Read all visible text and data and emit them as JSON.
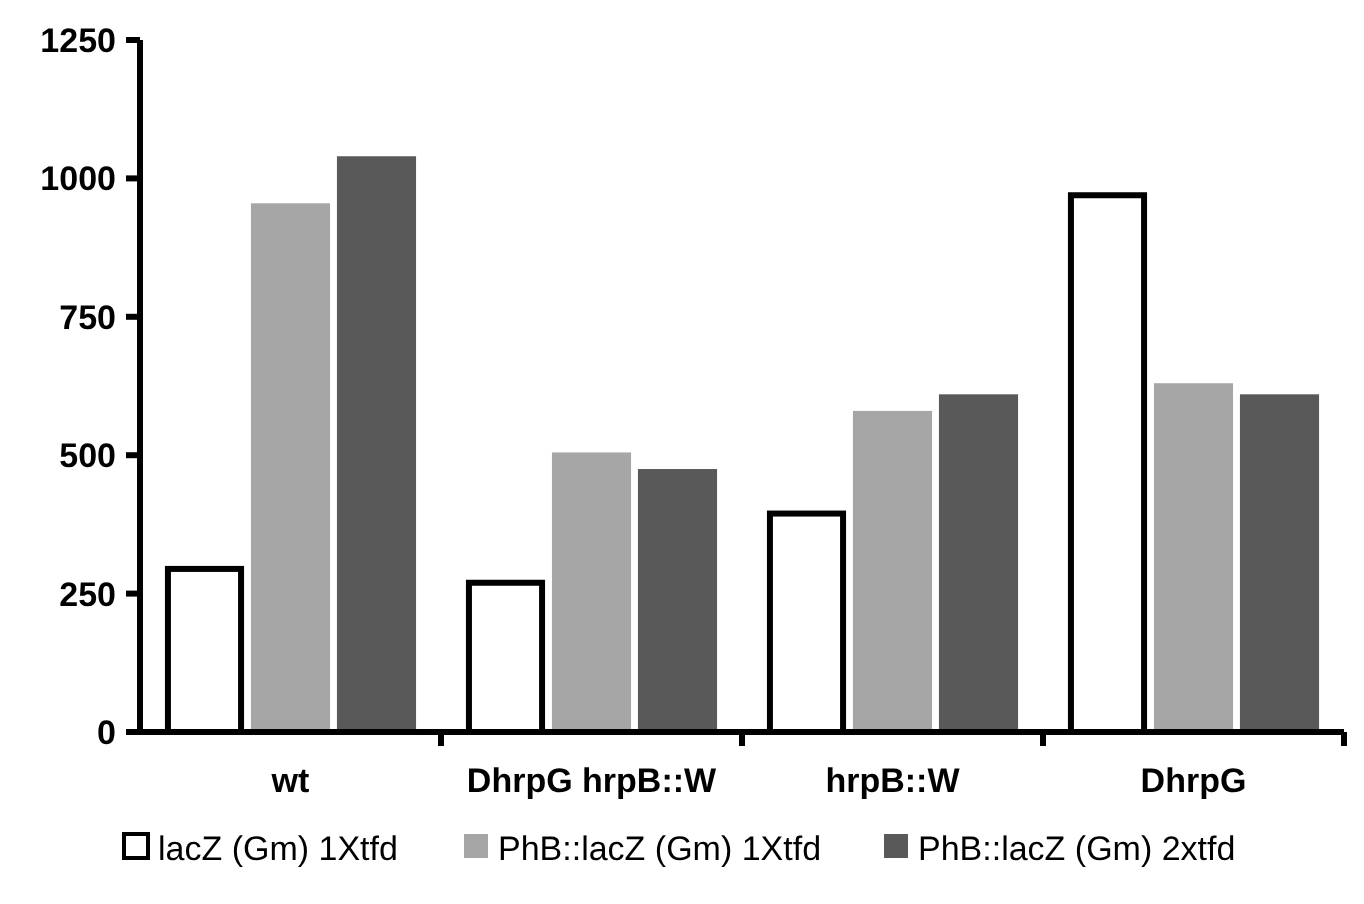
{
  "chart_data": {
    "type": "bar",
    "categories": [
      "wt",
      "DhrpG hrpB::W",
      "hrpB::W",
      "DhrpG"
    ],
    "series": [
      {
        "name": "lacZ (Gm) 1Xtfd",
        "color": "#ffffff",
        "values": [
          300,
          275,
          400,
          975
        ]
      },
      {
        "name": "PhB::lacZ (Gm) 1Xtfd",
        "color": "#a6a6a6",
        "values": [
          955,
          505,
          580,
          630
        ]
      },
      {
        "name": "PhB::lacZ (Gm) 2xtfd",
        "color": "#595959",
        "values": [
          1040,
          475,
          610,
          610
        ]
      }
    ],
    "ylim": [
      0,
      1250
    ],
    "yticks": [
      0,
      250,
      500,
      750,
      1000,
      1250
    ],
    "legend": "bottom"
  }
}
